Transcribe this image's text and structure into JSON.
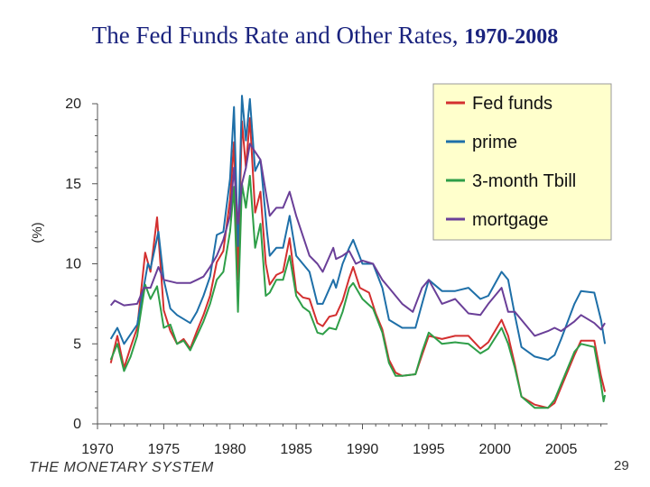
{
  "slide": {
    "title_main": "The Fed Funds Rate and Other Rates,",
    "title_years": "1970-2008",
    "footer": "THE MONETARY SYSTEM",
    "page_number": "29"
  },
  "chart_data": {
    "type": "line",
    "title": "The Fed Funds Rate and Other Rates, 1970-2008",
    "ylabel": "(%)",
    "xlabel": "",
    "xlim": [
      1970,
      2008.5
    ],
    "ylim": [
      0,
      20
    ],
    "xticks": [
      1970,
      1975,
      1980,
      1985,
      1990,
      1995,
      2000,
      2005
    ],
    "yticks": [
      0,
      5,
      10,
      15,
      20
    ],
    "grid": false,
    "legend_position": "top-right",
    "legend_background": "#ffffcc",
    "series": [
      {
        "name": "Fed funds",
        "color": "#d32f2f",
        "points": [
          [
            1971.0,
            3.8
          ],
          [
            1971.5,
            5.5
          ],
          [
            1972.0,
            3.5
          ],
          [
            1972.5,
            4.8
          ],
          [
            1973.0,
            6.0
          ],
          [
            1973.6,
            10.7
          ],
          [
            1974.0,
            9.5
          ],
          [
            1974.5,
            12.9
          ],
          [
            1975.0,
            7.1
          ],
          [
            1975.5,
            5.8
          ],
          [
            1976.0,
            5.0
          ],
          [
            1976.5,
            5.3
          ],
          [
            1977.0,
            4.7
          ],
          [
            1977.5,
            5.8
          ],
          [
            1978.0,
            6.8
          ],
          [
            1978.5,
            8.0
          ],
          [
            1979.0,
            10.1
          ],
          [
            1979.5,
            10.8
          ],
          [
            1980.0,
            14.0
          ],
          [
            1980.3,
            17.6
          ],
          [
            1980.6,
            9.0
          ],
          [
            1980.9,
            18.9
          ],
          [
            1981.2,
            16.0
          ],
          [
            1981.5,
            19.1
          ],
          [
            1981.9,
            13.2
          ],
          [
            1982.3,
            14.5
          ],
          [
            1982.7,
            10.0
          ],
          [
            1983.0,
            8.7
          ],
          [
            1983.5,
            9.3
          ],
          [
            1984.0,
            9.5
          ],
          [
            1984.5,
            11.6
          ],
          [
            1985.0,
            8.3
          ],
          [
            1985.5,
            7.9
          ],
          [
            1986.0,
            7.8
          ],
          [
            1986.6,
            6.3
          ],
          [
            1987.0,
            6.1
          ],
          [
            1987.5,
            6.7
          ],
          [
            1988.0,
            6.8
          ],
          [
            1988.5,
            7.7
          ],
          [
            1989.0,
            9.1
          ],
          [
            1989.3,
            9.8
          ],
          [
            1989.8,
            8.5
          ],
          [
            1990.5,
            8.2
          ],
          [
            1991.0,
            6.9
          ],
          [
            1991.5,
            5.9
          ],
          [
            1992.0,
            4.0
          ],
          [
            1992.5,
            3.2
          ],
          [
            1993.0,
            3.0
          ],
          [
            1994.0,
            3.1
          ],
          [
            1994.5,
            4.3
          ],
          [
            1995.0,
            5.5
          ],
          [
            1996.0,
            5.3
          ],
          [
            1997.0,
            5.5
          ],
          [
            1998.0,
            5.5
          ],
          [
            1998.9,
            4.7
          ],
          [
            1999.5,
            5.1
          ],
          [
            2000.5,
            6.5
          ],
          [
            2001.0,
            5.5
          ],
          [
            2001.5,
            3.7
          ],
          [
            2002.0,
            1.7
          ],
          [
            2003.0,
            1.2
          ],
          [
            2004.0,
            1.0
          ],
          [
            2004.5,
            1.3
          ],
          [
            2005.0,
            2.3
          ],
          [
            2006.0,
            4.3
          ],
          [
            2006.5,
            5.2
          ],
          [
            2007.5,
            5.2
          ],
          [
            2008.0,
            3.0
          ],
          [
            2008.3,
            2.0
          ]
        ]
      },
      {
        "name": "prime",
        "color": "#1e6fa8",
        "points": [
          [
            1971.0,
            5.3
          ],
          [
            1971.5,
            6.0
          ],
          [
            1972.0,
            5.0
          ],
          [
            1973.0,
            6.2
          ],
          [
            1973.8,
            10.0
          ],
          [
            1974.0,
            9.7
          ],
          [
            1974.6,
            12.0
          ],
          [
            1975.0,
            9.0
          ],
          [
            1975.5,
            7.2
          ],
          [
            1976.0,
            6.8
          ],
          [
            1977.0,
            6.3
          ],
          [
            1977.5,
            7.0
          ],
          [
            1978.0,
            8.0
          ],
          [
            1978.5,
            9.2
          ],
          [
            1979.0,
            11.8
          ],
          [
            1979.5,
            12.0
          ],
          [
            1980.0,
            15.3
          ],
          [
            1980.3,
            19.8
          ],
          [
            1980.6,
            11.1
          ],
          [
            1980.9,
            20.5
          ],
          [
            1981.2,
            17.7
          ],
          [
            1981.5,
            20.3
          ],
          [
            1981.9,
            15.8
          ],
          [
            1982.3,
            16.5
          ],
          [
            1982.8,
            12.0
          ],
          [
            1983.0,
            10.5
          ],
          [
            1983.5,
            11.0
          ],
          [
            1984.0,
            11.0
          ],
          [
            1984.5,
            13.0
          ],
          [
            1985.0,
            10.5
          ],
          [
            1986.0,
            9.5
          ],
          [
            1986.6,
            7.5
          ],
          [
            1987.0,
            7.5
          ],
          [
            1987.8,
            9.0
          ],
          [
            1988.0,
            8.5
          ],
          [
            1988.5,
            10.0
          ],
          [
            1989.0,
            11.0
          ],
          [
            1989.3,
            11.5
          ],
          [
            1990.0,
            10.0
          ],
          [
            1990.8,
            10.0
          ],
          [
            1991.5,
            8.5
          ],
          [
            1992.0,
            6.5
          ],
          [
            1993.0,
            6.0
          ],
          [
            1994.0,
            6.0
          ],
          [
            1994.5,
            7.5
          ],
          [
            1995.0,
            9.0
          ],
          [
            1996.0,
            8.3
          ],
          [
            1997.0,
            8.3
          ],
          [
            1998.0,
            8.5
          ],
          [
            1998.9,
            7.8
          ],
          [
            1999.5,
            8.0
          ],
          [
            2000.5,
            9.5
          ],
          [
            2001.0,
            9.0
          ],
          [
            2001.5,
            6.8
          ],
          [
            2002.0,
            4.8
          ],
          [
            2003.0,
            4.2
          ],
          [
            2004.0,
            4.0
          ],
          [
            2004.5,
            4.3
          ],
          [
            2005.0,
            5.3
          ],
          [
            2006.0,
            7.5
          ],
          [
            2006.5,
            8.3
          ],
          [
            2007.5,
            8.2
          ],
          [
            2008.0,
            6.5
          ],
          [
            2008.3,
            5.0
          ]
        ]
      },
      {
        "name": "3-month Tbill",
        "color": "#2e9e48",
        "points": [
          [
            1971.0,
            4.0
          ],
          [
            1971.5,
            5.0
          ],
          [
            1972.0,
            3.3
          ],
          [
            1972.5,
            4.2
          ],
          [
            1973.0,
            5.5
          ],
          [
            1973.6,
            8.7
          ],
          [
            1974.0,
            7.8
          ],
          [
            1974.5,
            8.6
          ],
          [
            1975.0,
            6.0
          ],
          [
            1975.5,
            6.2
          ],
          [
            1976.0,
            5.0
          ],
          [
            1976.5,
            5.2
          ],
          [
            1977.0,
            4.6
          ],
          [
            1977.5,
            5.5
          ],
          [
            1978.0,
            6.4
          ],
          [
            1978.5,
            7.5
          ],
          [
            1979.0,
            9.0
          ],
          [
            1979.5,
            9.5
          ],
          [
            1980.0,
            12.0
          ],
          [
            1980.3,
            14.8
          ],
          [
            1980.6,
            7.0
          ],
          [
            1980.9,
            15.0
          ],
          [
            1981.2,
            13.5
          ],
          [
            1981.5,
            15.5
          ],
          [
            1981.9,
            11.0
          ],
          [
            1982.3,
            12.5
          ],
          [
            1982.7,
            8.0
          ],
          [
            1983.0,
            8.2
          ],
          [
            1983.5,
            9.0
          ],
          [
            1984.0,
            9.0
          ],
          [
            1984.5,
            10.5
          ],
          [
            1985.0,
            8.0
          ],
          [
            1985.5,
            7.3
          ],
          [
            1986.0,
            7.0
          ],
          [
            1986.6,
            5.7
          ],
          [
            1987.0,
            5.6
          ],
          [
            1987.5,
            6.0
          ],
          [
            1988.0,
            5.9
          ],
          [
            1988.5,
            7.0
          ],
          [
            1989.0,
            8.5
          ],
          [
            1989.3,
            8.8
          ],
          [
            1990.0,
            7.8
          ],
          [
            1990.8,
            7.2
          ],
          [
            1991.5,
            5.7
          ],
          [
            1992.0,
            3.8
          ],
          [
            1992.5,
            3.0
          ],
          [
            1993.0,
            3.0
          ],
          [
            1994.0,
            3.1
          ],
          [
            1994.5,
            4.5
          ],
          [
            1995.0,
            5.7
          ],
          [
            1996.0,
            5.0
          ],
          [
            1997.0,
            5.1
          ],
          [
            1998.0,
            5.0
          ],
          [
            1998.9,
            4.4
          ],
          [
            1999.5,
            4.7
          ],
          [
            2000.5,
            6.0
          ],
          [
            2001.0,
            5.0
          ],
          [
            2001.5,
            3.5
          ],
          [
            2002.0,
            1.7
          ],
          [
            2003.0,
            1.0
          ],
          [
            2004.0,
            1.0
          ],
          [
            2004.5,
            1.5
          ],
          [
            2005.0,
            2.5
          ],
          [
            2006.0,
            4.5
          ],
          [
            2006.5,
            5.0
          ],
          [
            2007.5,
            4.8
          ],
          [
            2008.0,
            2.5
          ],
          [
            2008.2,
            1.4
          ],
          [
            2008.3,
            1.8
          ]
        ]
      },
      {
        "name": "mortgage",
        "color": "#6a3f98",
        "points": [
          [
            1971.0,
            7.4
          ],
          [
            1971.3,
            7.7
          ],
          [
            1972.0,
            7.4
          ],
          [
            1973.0,
            7.5
          ],
          [
            1973.5,
            8.5
          ],
          [
            1974.0,
            8.5
          ],
          [
            1974.6,
            9.8
          ],
          [
            1975.0,
            9.0
          ],
          [
            1976.0,
            8.8
          ],
          [
            1977.0,
            8.8
          ],
          [
            1977.5,
            9.0
          ],
          [
            1978.0,
            9.2
          ],
          [
            1978.5,
            9.8
          ],
          [
            1979.0,
            10.5
          ],
          [
            1979.5,
            11.5
          ],
          [
            1980.0,
            13.0
          ],
          [
            1980.3,
            16.0
          ],
          [
            1980.6,
            12.5
          ],
          [
            1980.9,
            15.0
          ],
          [
            1981.2,
            16.0
          ],
          [
            1981.5,
            17.5
          ],
          [
            1981.9,
            17.0
          ],
          [
            1982.3,
            16.5
          ],
          [
            1982.8,
            14.0
          ],
          [
            1983.0,
            13.0
          ],
          [
            1983.5,
            13.5
          ],
          [
            1984.0,
            13.5
          ],
          [
            1984.5,
            14.5
          ],
          [
            1985.0,
            13.0
          ],
          [
            1986.0,
            10.5
          ],
          [
            1986.6,
            10.0
          ],
          [
            1987.0,
            9.5
          ],
          [
            1987.8,
            11.0
          ],
          [
            1988.0,
            10.3
          ],
          [
            1988.5,
            10.5
          ],
          [
            1989.0,
            10.8
          ],
          [
            1989.5,
            10.0
          ],
          [
            1990.0,
            10.2
          ],
          [
            1990.8,
            10.0
          ],
          [
            1991.5,
            9.0
          ],
          [
            1992.0,
            8.5
          ],
          [
            1993.0,
            7.5
          ],
          [
            1993.8,
            7.0
          ],
          [
            1994.5,
            8.5
          ],
          [
            1995.0,
            9.0
          ],
          [
            1996.0,
            7.5
          ],
          [
            1997.0,
            7.8
          ],
          [
            1998.0,
            6.9
          ],
          [
            1998.9,
            6.8
          ],
          [
            1999.5,
            7.5
          ],
          [
            2000.5,
            8.5
          ],
          [
            2001.0,
            7.0
          ],
          [
            2001.5,
            7.0
          ],
          [
            2002.0,
            6.5
          ],
          [
            2003.0,
            5.5
          ],
          [
            2004.0,
            5.8
          ],
          [
            2004.5,
            6.0
          ],
          [
            2005.0,
            5.8
          ],
          [
            2006.0,
            6.4
          ],
          [
            2006.5,
            6.8
          ],
          [
            2007.5,
            6.3
          ],
          [
            2008.0,
            5.9
          ],
          [
            2008.3,
            6.3
          ]
        ]
      }
    ]
  }
}
